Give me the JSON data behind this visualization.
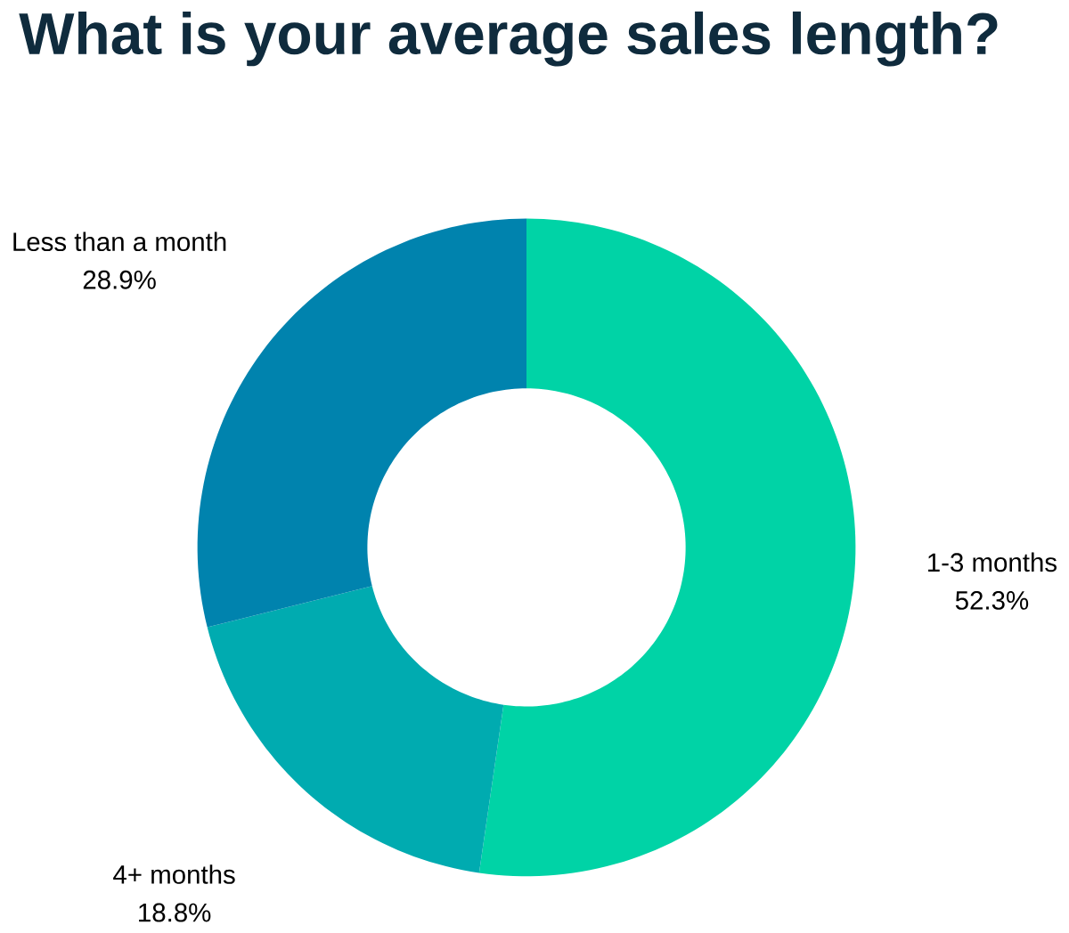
{
  "chart_data": {
    "type": "donut",
    "title": "What is your average sales length?",
    "categories": [
      "1-3 months",
      "4+ months",
      "Less than a month"
    ],
    "values": [
      52.3,
      18.8,
      28.9
    ],
    "colors": [
      "#00d3a6",
      "#00abb0",
      "#0083ae"
    ],
    "value_labels": [
      "52.3%",
      "18.8%",
      "28.9%"
    ]
  }
}
